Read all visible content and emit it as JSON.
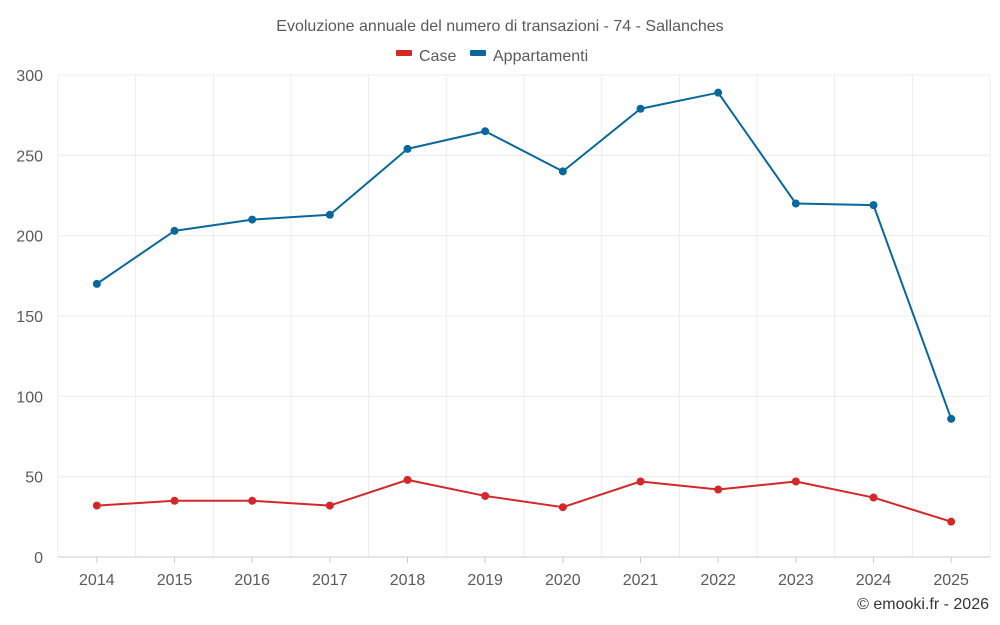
{
  "credit": "© emooki.fr - 2026",
  "chart_data": {
    "type": "line",
    "title": "Evoluzione annuale del numero di transazioni - 74 - Sallanches",
    "xlabel": "",
    "ylabel": "",
    "categories": [
      "2014",
      "2015",
      "2016",
      "2017",
      "2018",
      "2019",
      "2020",
      "2021",
      "2022",
      "2023",
      "2024",
      "2025"
    ],
    "ylim": [
      0,
      300
    ],
    "yticks": [
      0,
      50,
      100,
      150,
      200,
      250,
      300
    ],
    "grid": true,
    "legend_position": "top-center",
    "series": [
      {
        "name": "Case",
        "color": "#d62728",
        "values": [
          32,
          35,
          35,
          32,
          48,
          38,
          31,
          47,
          42,
          47,
          37,
          22
        ]
      },
      {
        "name": "Appartamenti",
        "color": "#08689e",
        "values": [
          170,
          203,
          210,
          213,
          254,
          265,
          240,
          279,
          289,
          220,
          219,
          86
        ]
      }
    ]
  }
}
